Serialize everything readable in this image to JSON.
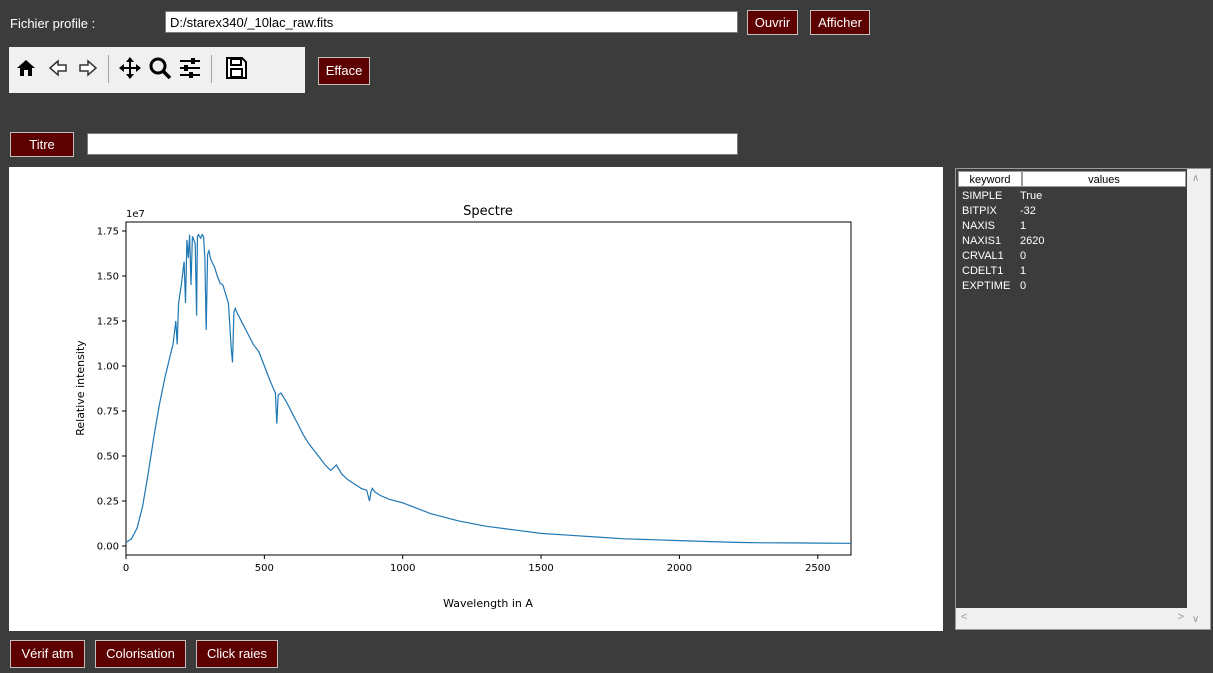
{
  "file_label": "Fichier profile :",
  "file_path": "D:/starex340/_10lac_raw.fits",
  "buttons": {
    "open": "Ouvrir",
    "show": "Afficher",
    "clear": "Efface",
    "title": "Titre",
    "atm_check": "Vérif atm",
    "colorize": "Colorisation",
    "click_lines": "Click raies"
  },
  "title_value": "",
  "toolbar_icons": [
    "home-icon",
    "back-arrow-icon",
    "forward-arrow-icon",
    "pan-icon",
    "zoom-icon",
    "configure-subplots-icon",
    "save-icon"
  ],
  "fits_header": {
    "col_keyword": "keyword",
    "col_values": "values",
    "rows": [
      {
        "key": "SIMPLE",
        "value": "True"
      },
      {
        "key": "BITPIX",
        "value": "-32"
      },
      {
        "key": "NAXIS",
        "value": "1"
      },
      {
        "key": "NAXIS1",
        "value": "2620"
      },
      {
        "key": "CRVAL1",
        "value": "0"
      },
      {
        "key": "CDELT1",
        "value": "1"
      },
      {
        "key": "EXPTIME",
        "value": "0"
      }
    ]
  },
  "chart_data": {
    "type": "line",
    "title": "Spectre",
    "xlabel": "Wavelength in A",
    "ylabel": "Relative intensity",
    "y_offset_label": "1e7",
    "xlim": [
      0,
      2620
    ],
    "ylim": [
      -0.05,
      1.8
    ],
    "x_ticks": [
      0,
      500,
      1000,
      1500,
      2000,
      2500
    ],
    "y_ticks": [
      0.0,
      0.25,
      0.5,
      0.75,
      1.0,
      1.25,
      1.5,
      1.75
    ],
    "y_tick_labels": [
      "0.00",
      "0.25",
      "0.50",
      "0.75",
      "1.00",
      "1.25",
      "1.50",
      "1.75"
    ],
    "series_color": "#1f77b4",
    "series": [
      {
        "x": [
          0,
          20,
          40,
          60,
          80,
          100,
          120,
          140,
          160,
          170,
          180,
          185,
          190,
          200,
          210,
          215,
          220,
          225,
          230,
          235,
          240,
          245,
          250,
          255,
          258,
          262,
          270,
          275,
          280,
          285,
          290,
          295,
          300,
          305,
          310,
          320,
          330,
          340,
          350,
          360,
          370,
          380,
          385,
          390,
          395,
          400,
          420,
          440,
          460,
          480,
          500,
          520,
          540,
          545,
          550,
          560,
          580,
          600,
          620,
          640,
          660,
          680,
          700,
          720,
          740,
          760,
          780,
          800,
          820,
          850,
          870,
          880,
          885,
          890,
          900,
          920,
          950,
          1000,
          1050,
          1100,
          1200,
          1300,
          1400,
          1500,
          1600,
          1700,
          1800,
          1900,
          2000,
          2100,
          2200,
          2300,
          2400,
          2500,
          2620
        ],
        "y": [
          0.02,
          0.04,
          0.1,
          0.22,
          0.4,
          0.6,
          0.78,
          0.93,
          1.06,
          1.12,
          1.25,
          1.12,
          1.35,
          1.45,
          1.58,
          1.35,
          1.7,
          1.6,
          1.73,
          1.45,
          1.72,
          1.7,
          1.68,
          1.28,
          1.72,
          1.73,
          1.71,
          1.73,
          1.72,
          1.6,
          1.2,
          1.62,
          1.64,
          1.6,
          1.58,
          1.55,
          1.5,
          1.46,
          1.45,
          1.4,
          1.35,
          1.1,
          1.02,
          1.3,
          1.32,
          1.3,
          1.24,
          1.18,
          1.12,
          1.08,
          1.0,
          0.92,
          0.85,
          0.68,
          0.84,
          0.85,
          0.8,
          0.74,
          0.68,
          0.62,
          0.57,
          0.53,
          0.49,
          0.45,
          0.42,
          0.45,
          0.4,
          0.37,
          0.35,
          0.32,
          0.31,
          0.25,
          0.3,
          0.32,
          0.3,
          0.28,
          0.26,
          0.24,
          0.21,
          0.18,
          0.14,
          0.11,
          0.09,
          0.07,
          0.06,
          0.05,
          0.04,
          0.035,
          0.03,
          0.025,
          0.02,
          0.018,
          0.017,
          0.016,
          0.015
        ]
      }
    ]
  }
}
